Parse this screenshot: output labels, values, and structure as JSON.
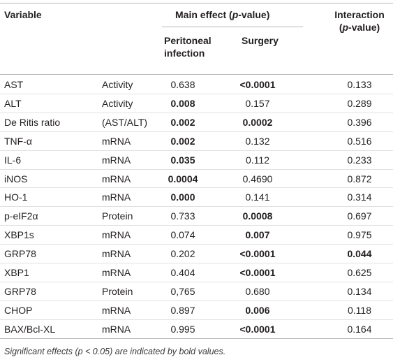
{
  "table": {
    "header": {
      "variable": "Variable",
      "main_effect_label": "Main effect (",
      "main_effect_p": "p",
      "main_effect_suffix": "-value)",
      "peritoneal_line1": "Peritoneal",
      "peritoneal_line2": "infection",
      "surgery": "Surgery",
      "interaction_line1": "Interaction",
      "interaction_open": "(",
      "interaction_p": "p",
      "interaction_close": "-value)"
    },
    "rows": [
      {
        "variable": "AST",
        "type": "Activity",
        "peritoneal": "0.638",
        "peritoneal_bold": false,
        "surgery": "<0.0001",
        "surgery_bold": true,
        "interaction": "0.133",
        "interaction_bold": false
      },
      {
        "variable": "ALT",
        "type": "Activity",
        "peritoneal": "0.008",
        "peritoneal_bold": true,
        "surgery": "0.157",
        "surgery_bold": false,
        "interaction": "0.289",
        "interaction_bold": false
      },
      {
        "variable": "De Ritis ratio",
        "type": "(AST/ALT)",
        "peritoneal": "0.002",
        "peritoneal_bold": true,
        "surgery": "0.0002",
        "surgery_bold": true,
        "interaction": "0.396",
        "interaction_bold": false
      },
      {
        "variable": "TNF-α",
        "type": "mRNA",
        "peritoneal": "0.002",
        "peritoneal_bold": true,
        "surgery": "0.132",
        "surgery_bold": false,
        "interaction": "0.516",
        "interaction_bold": false
      },
      {
        "variable": "IL-6",
        "type": "mRNA",
        "peritoneal": "0.035",
        "peritoneal_bold": true,
        "surgery": "0.112",
        "surgery_bold": false,
        "interaction": "0.233",
        "interaction_bold": false
      },
      {
        "variable": "iNOS",
        "type": "mRNA",
        "peritoneal": "0.0004",
        "peritoneal_bold": true,
        "surgery": "0.4690",
        "surgery_bold": false,
        "interaction": "0.872",
        "interaction_bold": false
      },
      {
        "variable": "HO-1",
        "type": "mRNA",
        "peritoneal": "0.000",
        "peritoneal_bold": true,
        "surgery": "0.141",
        "surgery_bold": false,
        "interaction": "0.314",
        "interaction_bold": false
      },
      {
        "variable": "p-eIF2α",
        "type": "Protein",
        "peritoneal": "0.733",
        "peritoneal_bold": false,
        "surgery": "0.0008",
        "surgery_bold": true,
        "interaction": "0.697",
        "interaction_bold": false
      },
      {
        "variable": "XBP1s",
        "type": "mRNA",
        "peritoneal": "0.074",
        "peritoneal_bold": false,
        "surgery": "0.007",
        "surgery_bold": true,
        "interaction": "0.975",
        "interaction_bold": false
      },
      {
        "variable": "GRP78",
        "type": "mRNA",
        "peritoneal": "0.202",
        "peritoneal_bold": false,
        "surgery": "<0.0001",
        "surgery_bold": true,
        "interaction": "0.044",
        "interaction_bold": true
      },
      {
        "variable": "XBP1",
        "type": "mRNA",
        "peritoneal": "0.404",
        "peritoneal_bold": false,
        "surgery": "<0.0001",
        "surgery_bold": true,
        "interaction": "0.625",
        "interaction_bold": false
      },
      {
        "variable": "GRP78",
        "type": "Protein",
        "peritoneal": "0,765",
        "peritoneal_bold": false,
        "surgery": "0.680",
        "surgery_bold": false,
        "interaction": "0.134",
        "interaction_bold": false
      },
      {
        "variable": "CHOP",
        "type": "mRNA",
        "peritoneal": "0.897",
        "peritoneal_bold": false,
        "surgery": "0.006",
        "surgery_bold": true,
        "interaction": "0.118",
        "interaction_bold": false
      },
      {
        "variable": "BAX/Bcl-XL",
        "type": "mRNA",
        "peritoneal": "0.995",
        "peritoneal_bold": false,
        "surgery": "<0.0001",
        "surgery_bold": true,
        "interaction": "0.164",
        "interaction_bold": false
      }
    ]
  },
  "footnote": "Significant effects (p < 0.05) are indicated by bold values."
}
